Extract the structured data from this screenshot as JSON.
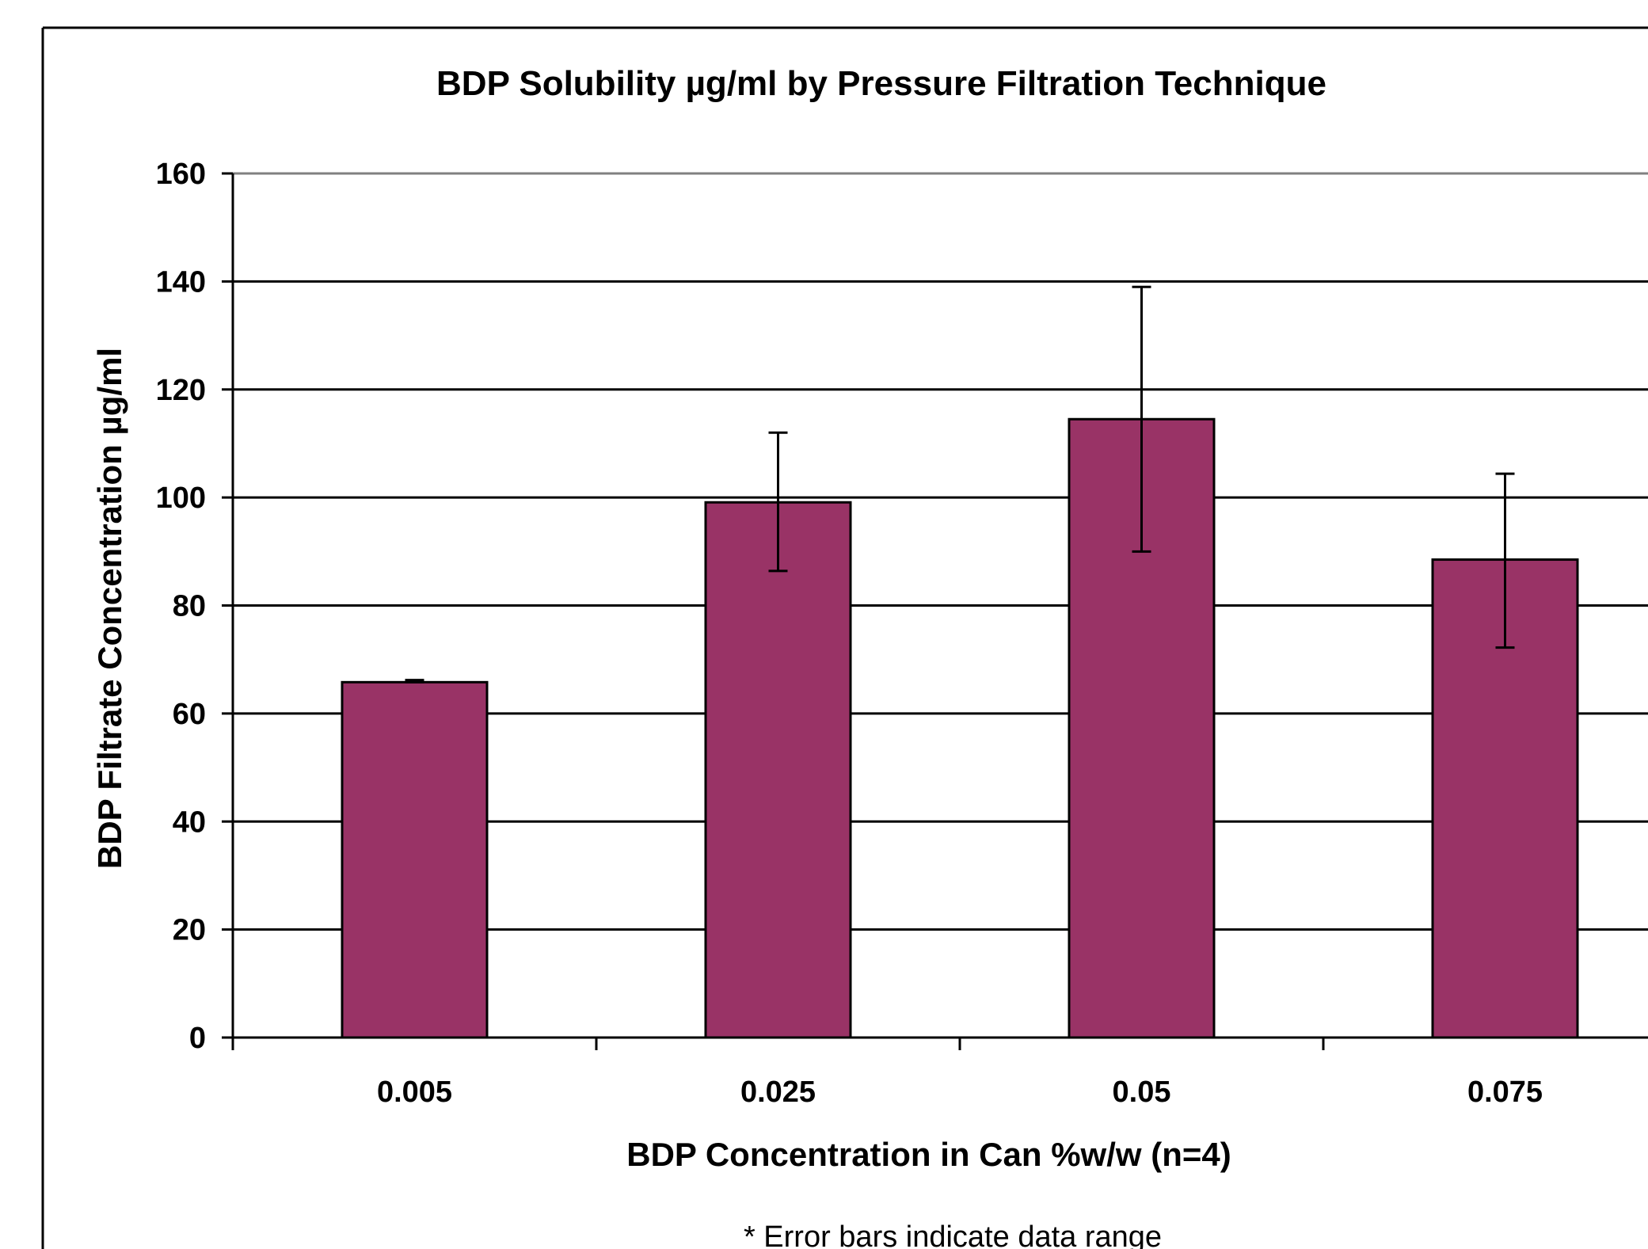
{
  "chart_data": {
    "type": "bar",
    "title": "BDP Solubility µg/ml by Pressure Filtration Technique",
    "xlabel": "BDP Concentration in Can %w/w (n=4)",
    "ylabel": "BDP Filtrate Concentration µg/ml",
    "categories": [
      "0.005",
      "0.025",
      "0.05",
      "0.075"
    ],
    "series": [
      {
        "values": [
          65.8,
          99.1,
          114.5,
          88.5
        ],
        "error_low": [
          65.8,
          86.4,
          90.0,
          72.2
        ],
        "error_high": [
          66.2,
          112.0,
          139.0,
          104.4
        ],
        "color": "#993366"
      }
    ],
    "ylim": [
      0,
      160
    ],
    "yticks": [
      "0",
      "20",
      "40",
      "60",
      "80",
      "100",
      "120",
      "140",
      "160"
    ],
    "grid": true,
    "legend": "none",
    "footnote": "* Error bars indicate data range"
  },
  "colors": {
    "bar_fill": "#993366",
    "bar_stroke": "#000000",
    "gridline": "#000000",
    "plot_top_border": "#808080",
    "frame": "#000000",
    "background": "#ffffff"
  }
}
